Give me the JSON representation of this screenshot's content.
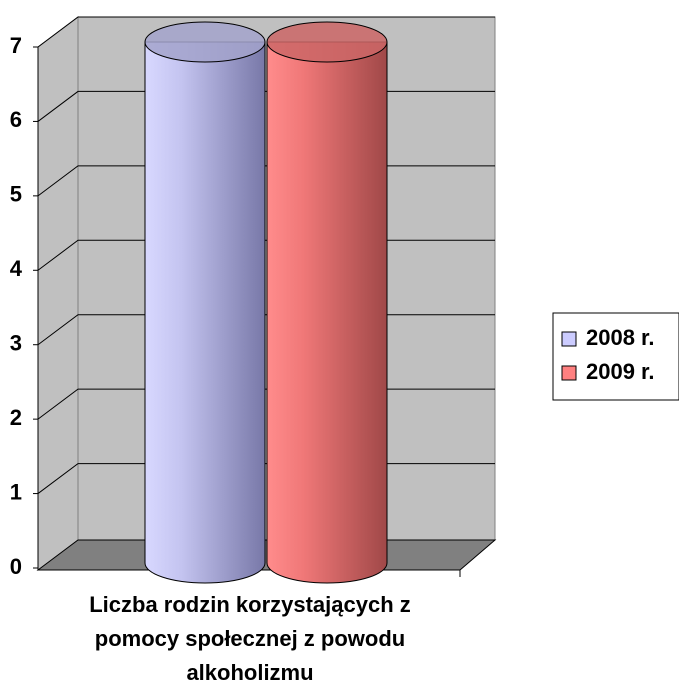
{
  "chart_data": {
    "type": "bar3d_cylinder",
    "categories": [
      "Liczba rodzin korzystających z pomocy społecznej z powodu alkoholizmu"
    ],
    "series": [
      {
        "name": "2008 r.",
        "color": "#ccccff",
        "values": [
          7
        ]
      },
      {
        "name": "2009 r.",
        "color": "#ff8080",
        "values": [
          7
        ]
      }
    ],
    "ylim": [
      0,
      7
    ],
    "yticks": [
      0,
      1,
      2,
      3,
      4,
      5,
      6,
      7
    ],
    "grid": true,
    "legend": "right"
  }
}
